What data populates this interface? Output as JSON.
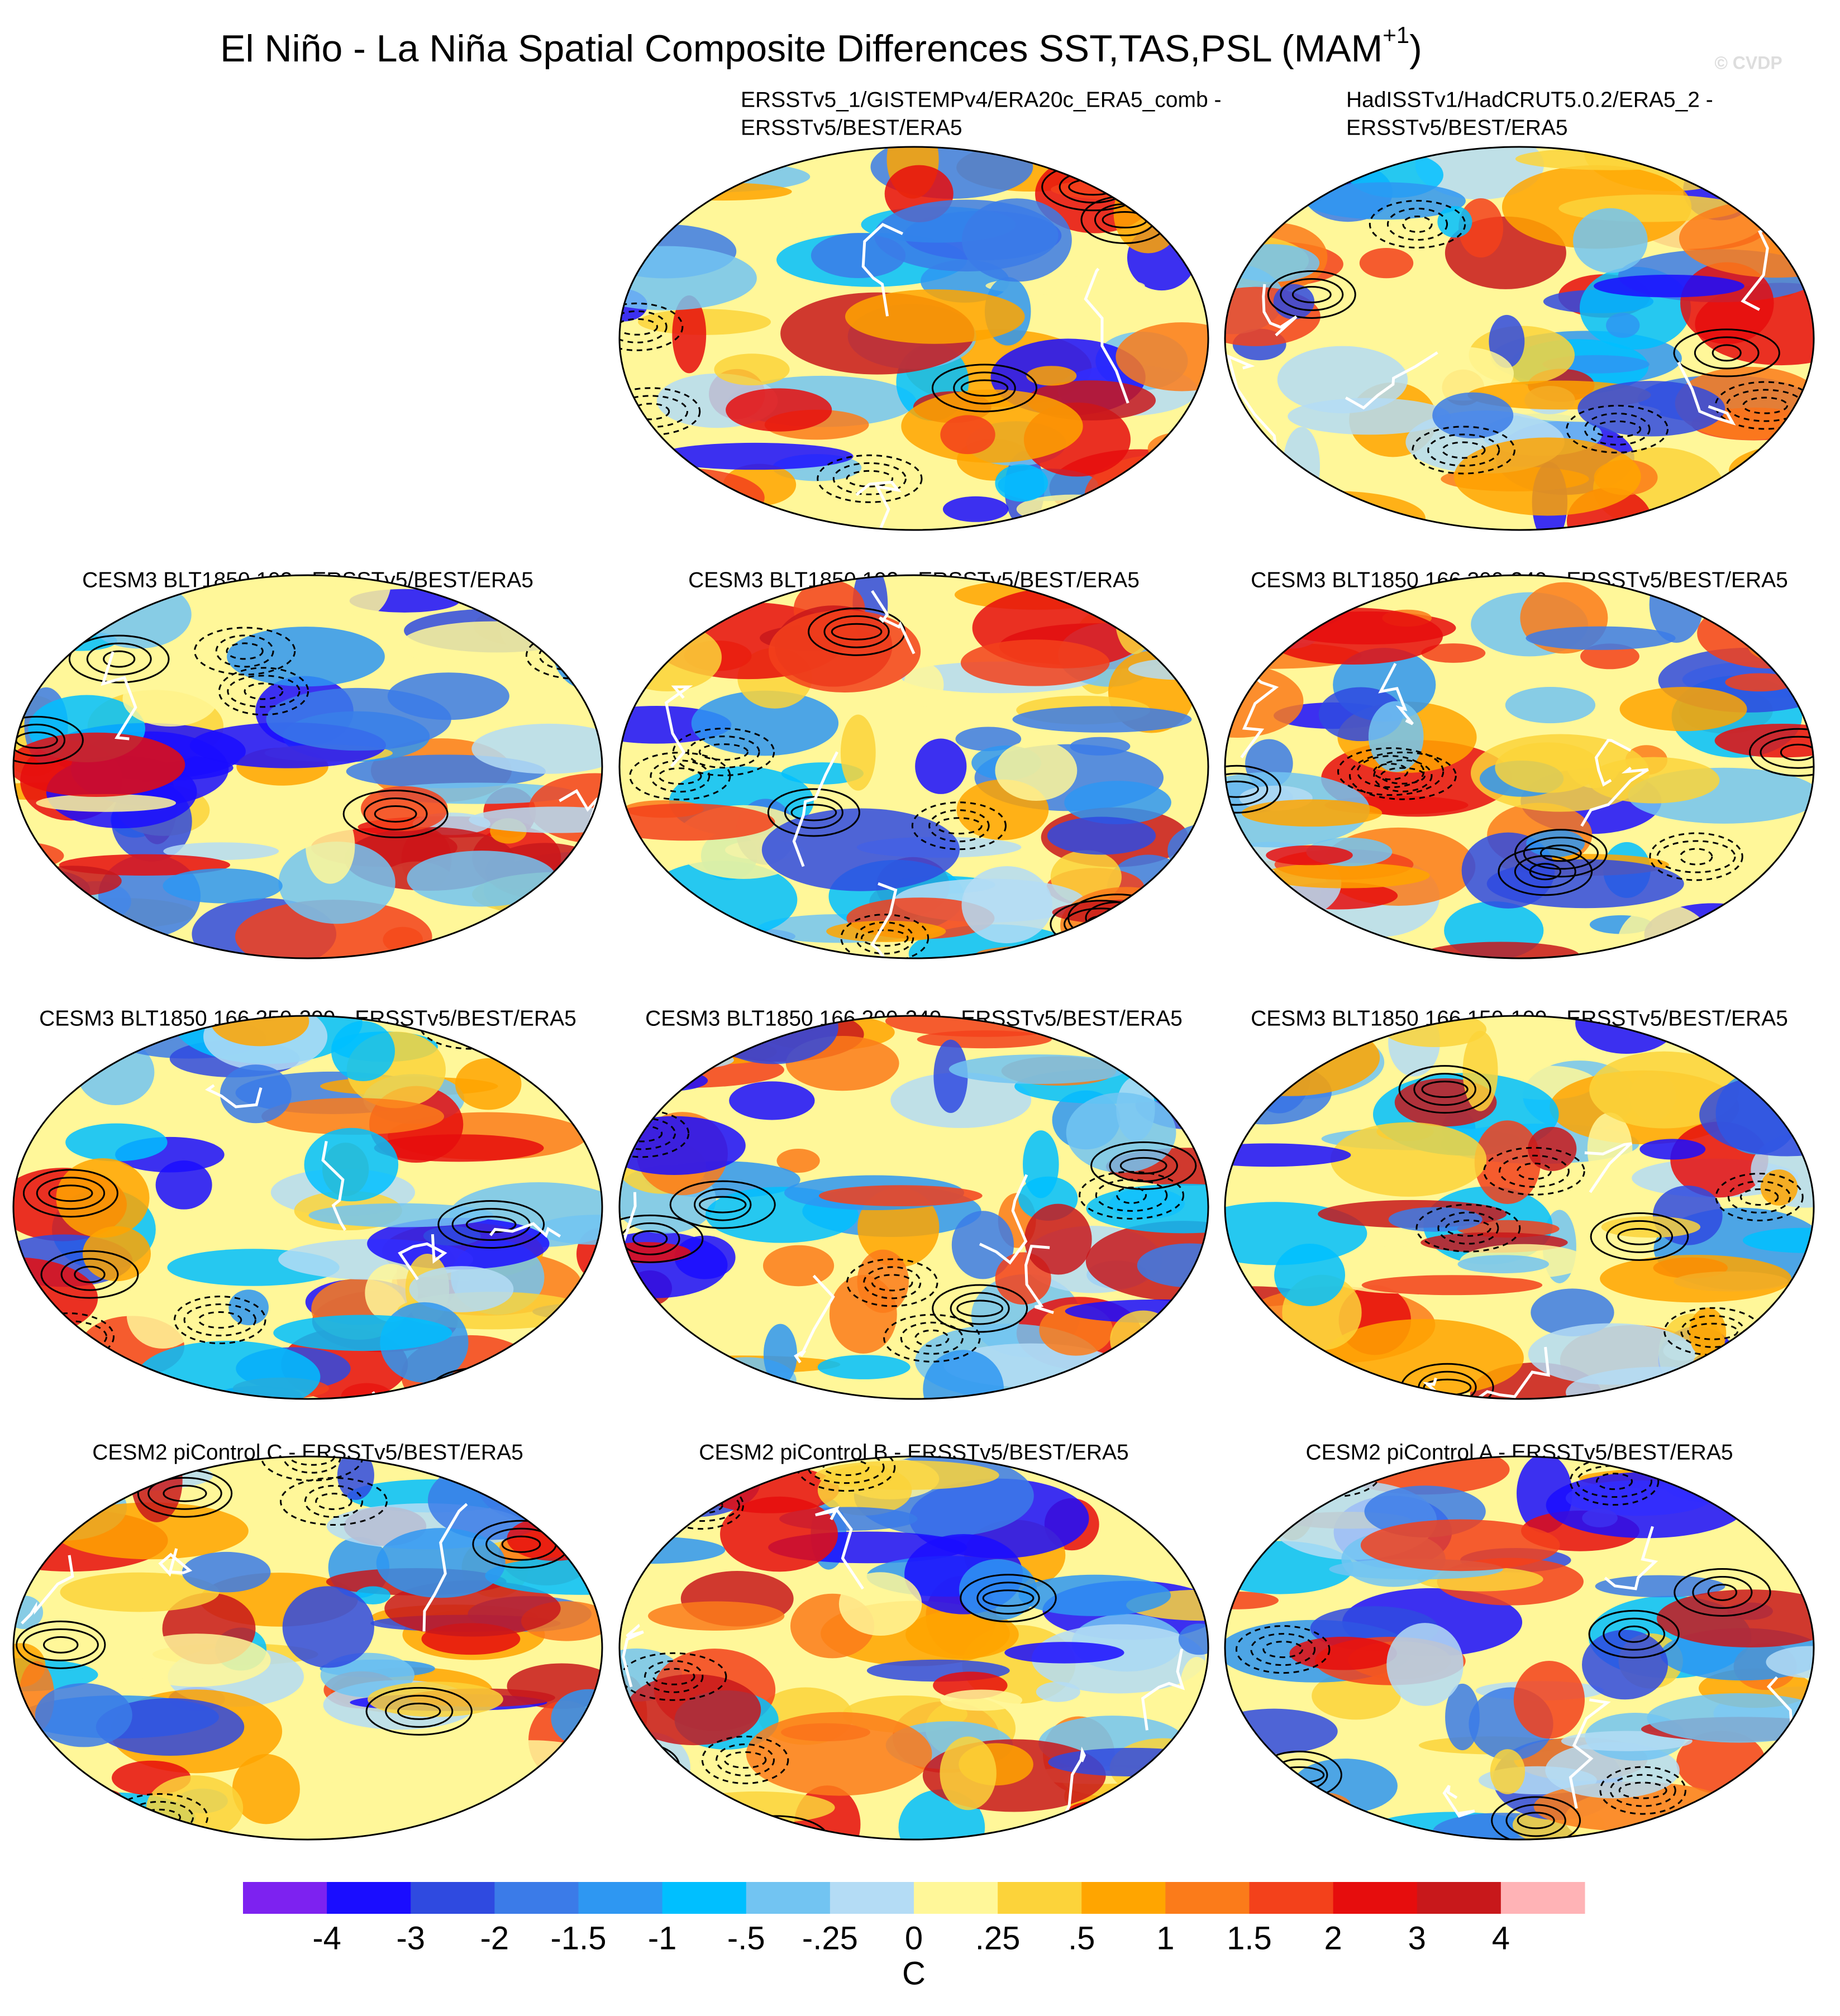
{
  "title": "El Niño - La Niña Spatial Composite Differences SST,TAS,PSL (MAM",
  "title_superscript": "+1",
  "title_end": ")",
  "watermark": "© CVDP",
  "panels": [
    {
      "title": [
        "ERSSTv5_1/GISTEMPv4/ERA20c_ERA5_comb -",
        "ERSSTv5/BEST/ERA5"
      ]
    },
    {
      "title": [
        "HadISSTv1/HadCRUT5.0.2/ERA5_2 -",
        "ERSSTv5/BEST/ERA5"
      ]
    },
    {
      "title": [
        "CESM3 BLT1850 193 - ERSSTv5/BEST/ERA5"
      ]
    },
    {
      "title": [
        "CESM3 BLT1850 192 - ERSSTv5/BEST/ERA5"
      ]
    },
    {
      "title": [
        "CESM3 BLT1850 166 300-349 - ERSSTv5/BEST/ERA5"
      ]
    },
    {
      "title": [
        "CESM3 BLT1850 166 250-299 - ERSSTv5/BEST/ERA5"
      ]
    },
    {
      "title": [
        "CESM3 BLT1850 166 200-249 - ERSSTv5/BEST/ERA5"
      ]
    },
    {
      "title": [
        "CESM3 BLT1850 166 150-199 - ERSSTv5/BEST/ERA5"
      ]
    },
    {
      "title": [
        "CESM2 piControl C - ERSSTv5/BEST/ERA5"
      ]
    },
    {
      "title": [
        "CESM2 piControl B - ERSSTv5/BEST/ERA5"
      ]
    },
    {
      "title": [
        "CESM2 piControl A - ERSSTv5/BEST/ERA5"
      ]
    }
  ],
  "colorbar": {
    "colors": [
      "#7d22f0",
      "#1a0dff",
      "#2f4ae0",
      "#3b7be8",
      "#2e97f2",
      "#00bfff",
      "#72c4f2",
      "#b4dcf5",
      "#fff799",
      "#fcd33a",
      "#ffa500",
      "#fb7b1a",
      "#f3411b",
      "#e60d0d",
      "#c8181b",
      "#ffb3b6"
    ],
    "levels": [
      -4,
      -3,
      -2,
      -1.5,
      -1,
      {
        "value": -0.5,
        "label": "-.5"
      },
      {
        "value": -0.25,
        "label": "-.25"
      },
      0,
      {
        "value": 0.25,
        "label": ".25"
      },
      {
        "value": 0.5,
        "label": ".5"
      },
      1,
      1.5,
      2,
      3,
      4
    ],
    "unit": "C"
  }
}
